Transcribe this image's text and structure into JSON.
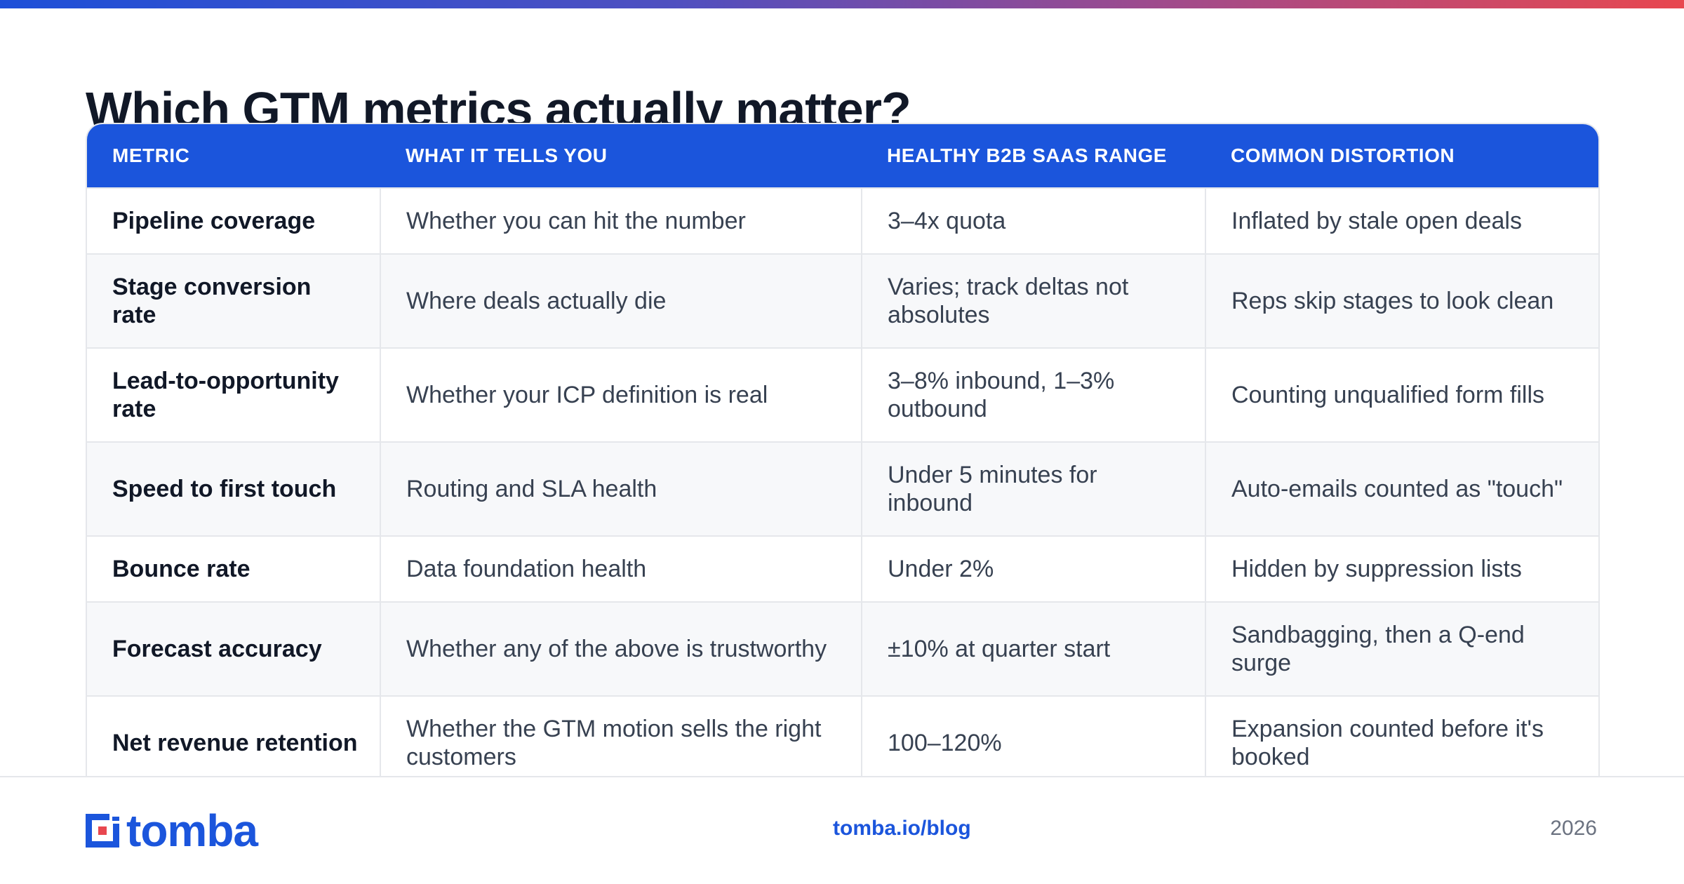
{
  "title": "Which GTM metrics actually matter?",
  "table": {
    "headers": [
      "METRIC",
      "WHAT IT TELLS YOU",
      "HEALTHY B2B SAAS RANGE",
      "COMMON DISTORTION"
    ],
    "rows": [
      [
        "Pipeline coverage",
        "Whether you can hit the number",
        "3–4x quota",
        "Inflated by stale open deals"
      ],
      [
        "Stage conversion rate",
        "Where deals actually die",
        "Varies; track deltas not absolutes",
        "Reps skip stages to look clean"
      ],
      [
        "Lead-to-opportunity rate",
        "Whether your ICP definition is real",
        "3–8% inbound, 1–3% outbound",
        "Counting unqualified form fills"
      ],
      [
        "Speed to first touch",
        "Routing and SLA health",
        "Under 5 minutes for inbound",
        "Auto-emails counted as \"touch\""
      ],
      [
        "Bounce rate",
        "Data foundation health",
        "Under 2%",
        "Hidden by suppression lists"
      ],
      [
        "Forecast accuracy",
        "Whether any of the above is trustworthy",
        "±10% at quarter start",
        "Sandbagging, then a Q-end surge"
      ],
      [
        "Net revenue retention",
        "Whether the GTM motion sells the right customers",
        "100–120%",
        "Expansion counted before it's booked"
      ]
    ]
  },
  "footer": {
    "logo_text": "tomba",
    "url": "tomba.io/blog",
    "year": "2026"
  },
  "colors": {
    "accent": "#1b55dc",
    "gradient_start": "#1d4fd8",
    "gradient_end": "#e8474f",
    "logo_square_accent": "#e8474f"
  }
}
